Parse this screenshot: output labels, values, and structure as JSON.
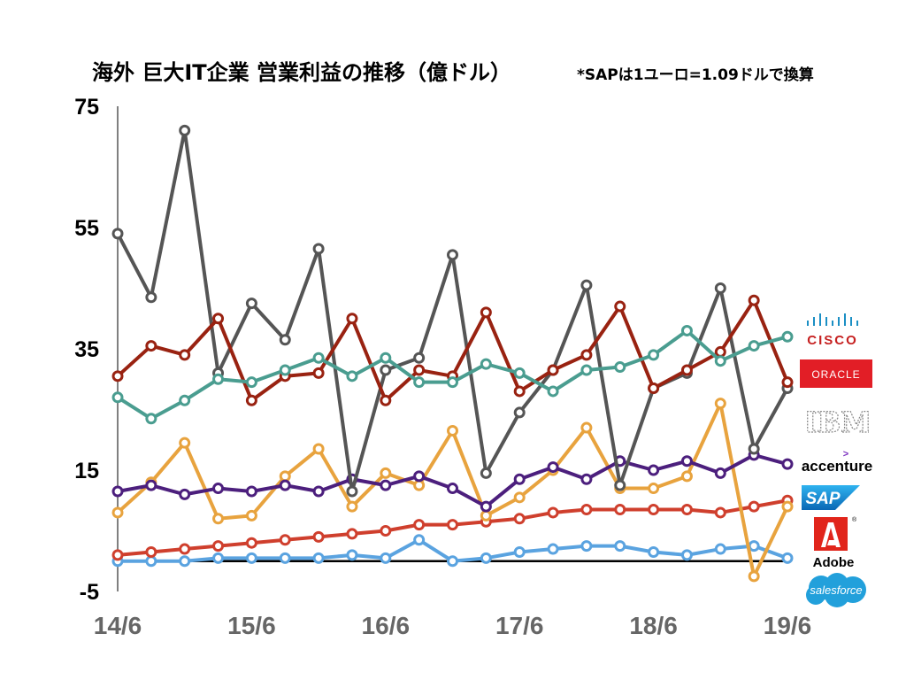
{
  "title": "海外 巨大IT企業 営業利益の推移（億ドル）",
  "note": "*SAPは1ユーロ=1.09ドルで換算",
  "logos": {
    "cisco": "CISCO",
    "oracle": "ORACLE",
    "ibm": "IBM",
    "accenture": "accenture",
    "sap": "SAP",
    "adobe": "Adobe",
    "salesforce": "salesforce"
  },
  "chart_data": {
    "type": "line",
    "title": "海外 巨大IT企業 営業利益の推移（億ドル）",
    "xlabel": "",
    "ylabel": "",
    "ylim": [
      -5,
      75
    ],
    "yticks": [
      75,
      55,
      35,
      15,
      -5
    ],
    "x_tick_labels": [
      "14/6",
      "15/6",
      "16/6",
      "17/6",
      "18/6",
      "19/6"
    ],
    "x_tick_positions": [
      0,
      4,
      8,
      12,
      16,
      20
    ],
    "x": [
      0,
      1,
      2,
      3,
      4,
      5,
      6,
      7,
      8,
      9,
      10,
      11,
      12,
      13,
      14,
      15,
      16,
      17,
      18,
      19,
      20
    ],
    "grid": false,
    "legend": "logos at right",
    "zero_line": true,
    "series": [
      {
        "name": "CISCO",
        "color": "#4a9d90",
        "values": [
          27,
          23.5,
          26.5,
          30,
          29.5,
          31.5,
          33.5,
          30.5,
          33.5,
          29.5,
          29.5,
          32.5,
          31,
          28,
          31.5,
          32,
          34,
          38,
          33,
          35.5,
          37
        ]
      },
      {
        "name": "ORACLE",
        "color": "#992211",
        "values": [
          30.5,
          35.5,
          34,
          40,
          26.5,
          30.5,
          31,
          40,
          26.5,
          31.5,
          30.5,
          41,
          28,
          31.5,
          34,
          42,
          28.5,
          31.5,
          34.5,
          43,
          29.5
        ]
      },
      {
        "name": "IBM",
        "color": "#555555",
        "values": [
          54,
          43.5,
          71,
          31,
          42.5,
          36.5,
          51.5,
          11.5,
          31.5,
          33.5,
          50.5,
          14.5,
          24.5,
          31.5,
          45.5,
          12.5,
          28.5,
          31,
          45,
          18.5,
          28.5
        ]
      },
      {
        "name": "accenture",
        "color": "#4c1f7d",
        "values": [
          11.5,
          12.5,
          11,
          12,
          11.5,
          12.5,
          11.5,
          13.5,
          12.5,
          14,
          12,
          9,
          13.5,
          15.5,
          13.5,
          16.5,
          15,
          16.5,
          14.5,
          17.5,
          16
        ]
      },
      {
        "name": "SAP",
        "color": "#e8a33e",
        "values": [
          8,
          13,
          19.5,
          7,
          7.5,
          14,
          18.5,
          9,
          14.5,
          12.5,
          21.5,
          7.5,
          10.5,
          15,
          22,
          12,
          12,
          14,
          26,
          -2.5,
          9
        ]
      },
      {
        "name": "Adobe",
        "color": "#cf3f2d",
        "values": [
          1,
          1.5,
          2,
          2.5,
          3,
          3.5,
          4,
          4.5,
          5,
          6,
          6,
          6.5,
          7,
          8,
          8.5,
          8.5,
          8.5,
          8.5,
          8,
          9,
          10
        ]
      },
      {
        "name": "salesforce",
        "color": "#5aa3e0",
        "values": [
          0,
          0,
          0,
          0.5,
          0.5,
          0.5,
          0.5,
          1,
          0.5,
          3.5,
          0,
          0.5,
          1.5,
          2,
          2.5,
          2.5,
          1.5,
          1,
          2,
          2.5,
          0.5
        ]
      }
    ]
  }
}
